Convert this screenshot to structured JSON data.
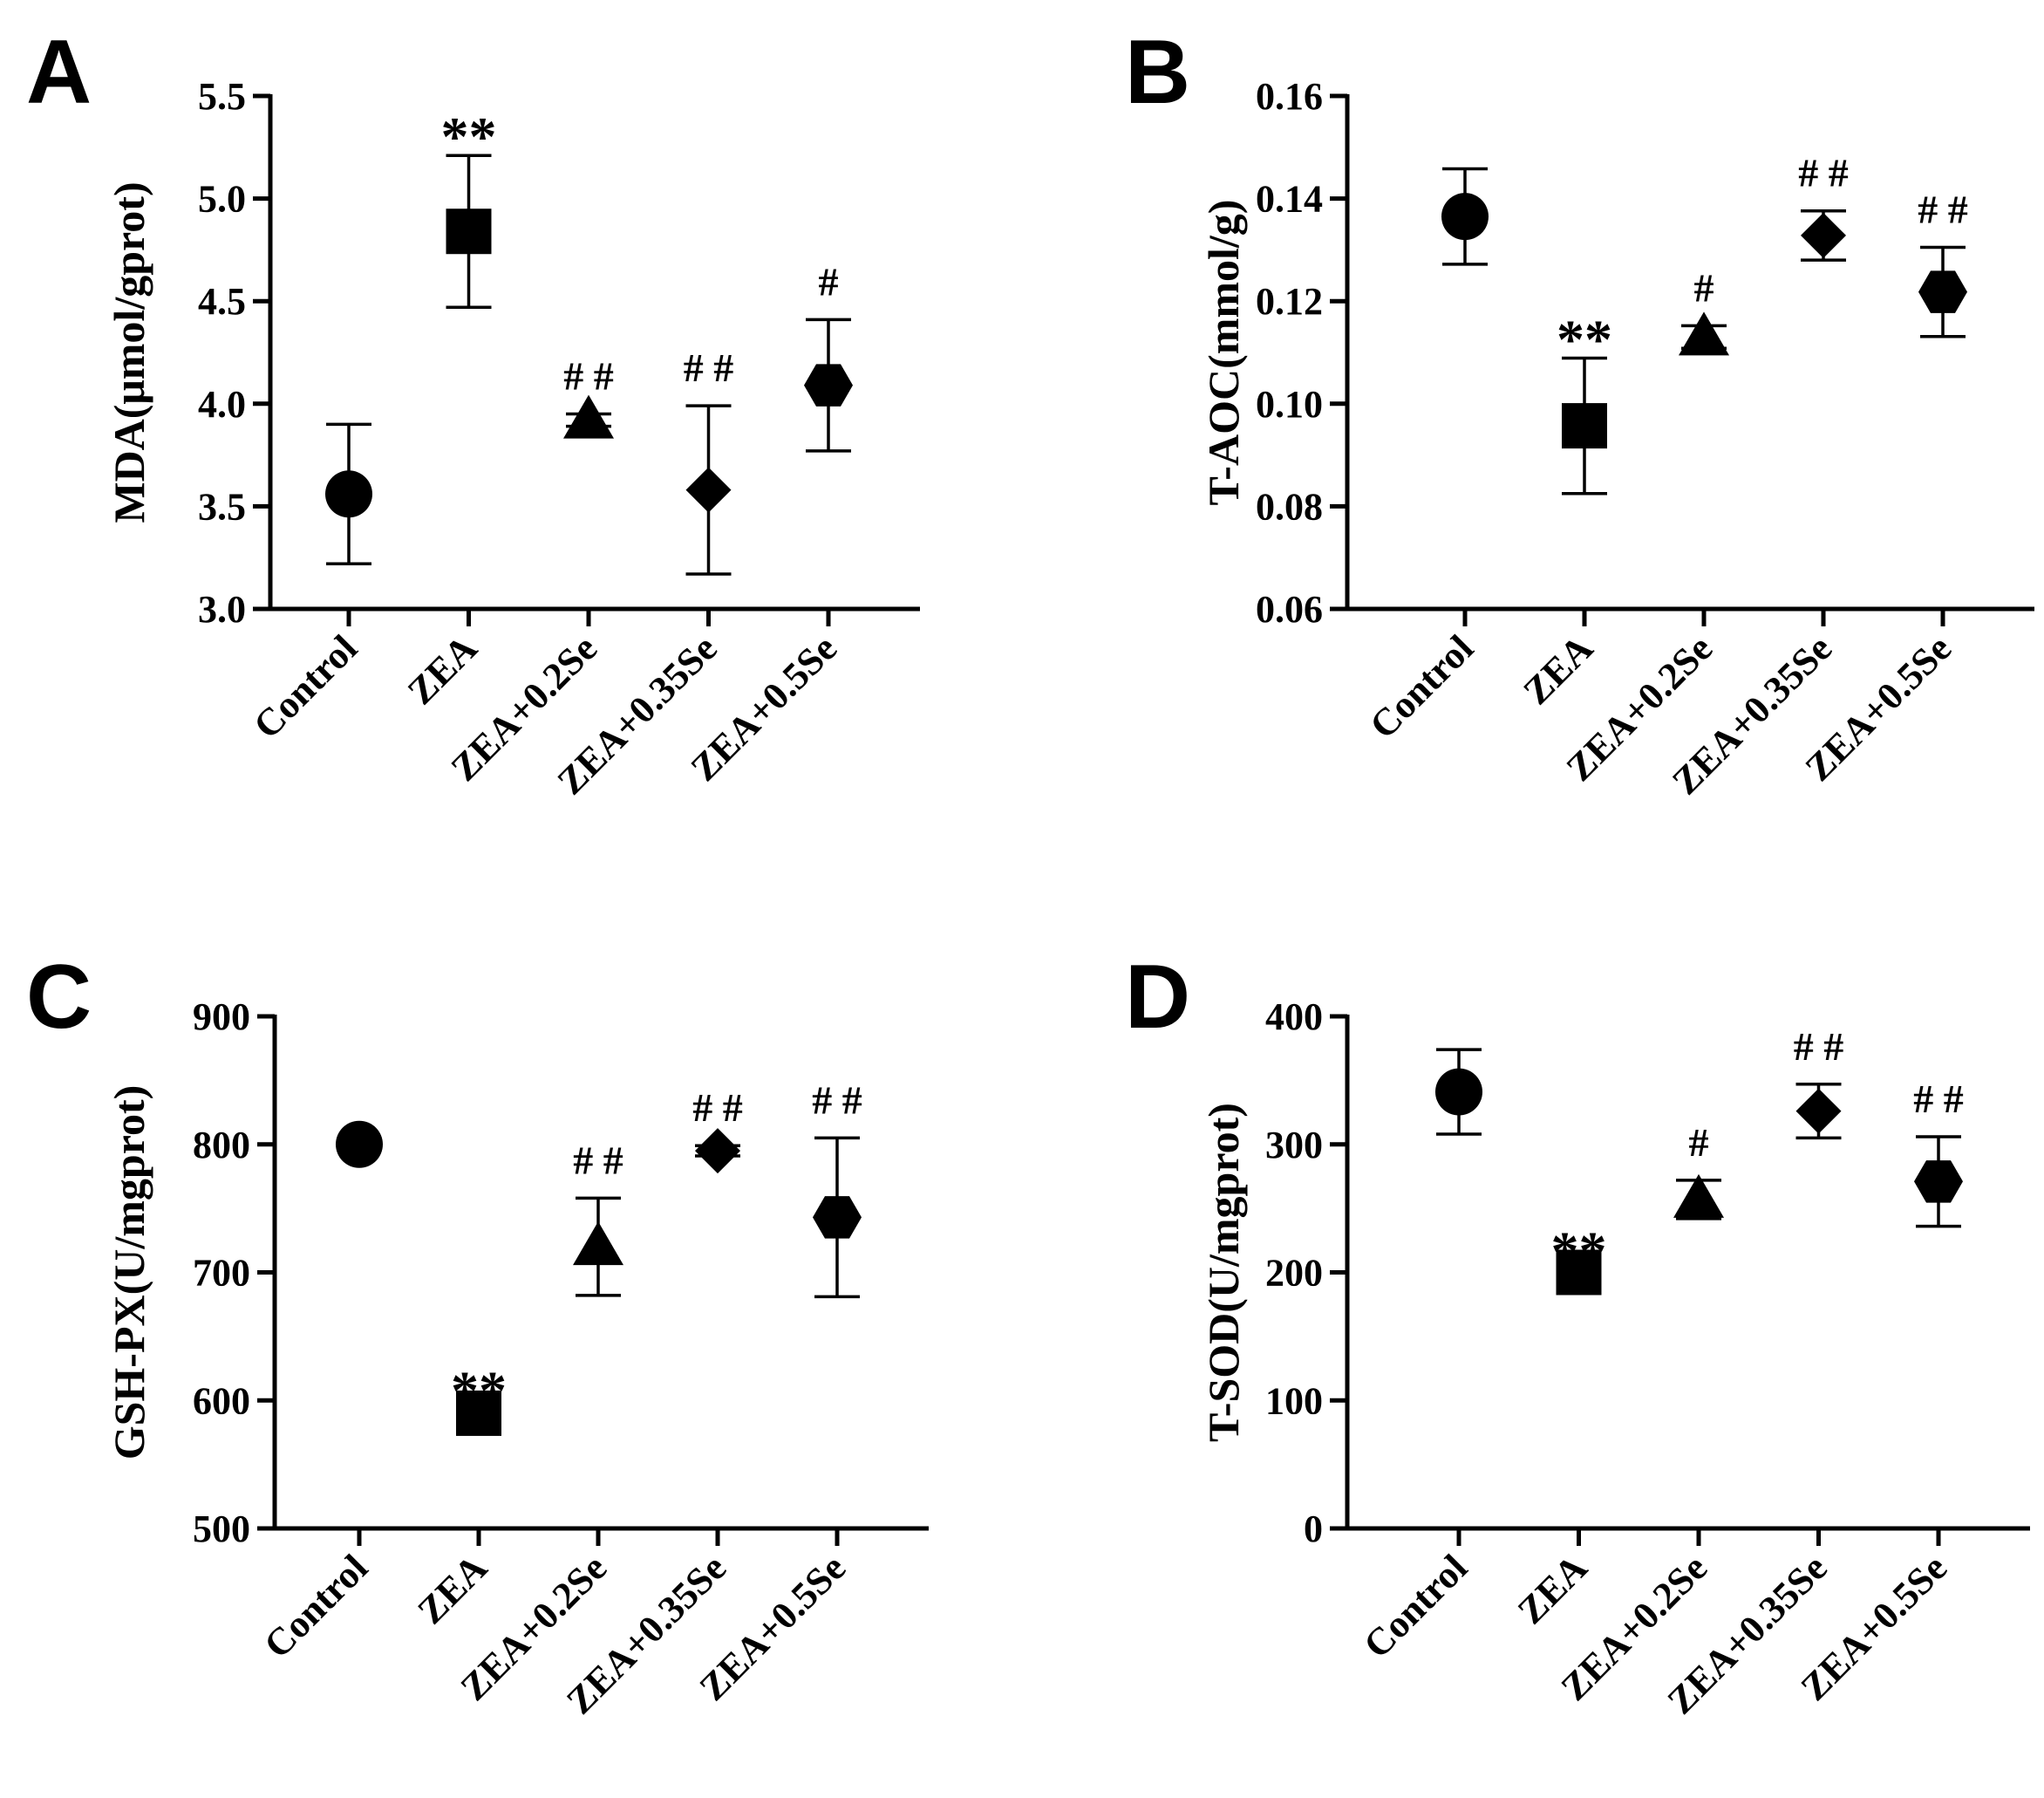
{
  "chart_data": [
    {
      "panel": "A",
      "type": "scatter",
      "ylabel": "MDA(μmol/gprot)",
      "categories": [
        "Control",
        "ZEA",
        "ZEA+0.2Se",
        "ZEA+0.35Se",
        "ZEA+0.5Se"
      ],
      "ylim": [
        3.0,
        5.5
      ],
      "yticks": [
        "3.0",
        "3.5",
        "4.0",
        "4.5",
        "5.0",
        "5.5"
      ],
      "values": [
        3.56,
        4.84,
        3.92,
        3.58,
        4.09
      ],
      "errors": [
        0.34,
        0.37,
        0.03,
        0.41,
        0.32
      ],
      "markers": [
        "circle",
        "square",
        "triangle",
        "diamond",
        "hexagon"
      ],
      "annotations": [
        "",
        "**",
        "# #",
        "# #",
        "#"
      ]
    },
    {
      "panel": "B",
      "type": "scatter",
      "ylabel": "T-AOC(mmol/g)",
      "categories": [
        "Control",
        "ZEA",
        "ZEA+0.2Se",
        "ZEA+0.35Se",
        "ZEA+0.5Se"
      ],
      "ylim": [
        0.06,
        0.16
      ],
      "yticks": [
        "0.06",
        "0.08",
        "0.10",
        "0.12",
        "0.14",
        "0.16"
      ],
      "values": [
        0.1365,
        0.0957,
        0.113,
        0.1328,
        0.1218
      ],
      "errors": [
        0.0093,
        0.0132,
        0.0022,
        0.0048,
        0.0087
      ],
      "markers": [
        "circle",
        "square",
        "triangle",
        "diamond",
        "hexagon"
      ],
      "annotations": [
        "",
        "**",
        "#",
        "# #",
        "# #"
      ]
    },
    {
      "panel": "C",
      "type": "scatter",
      "ylabel": "GSH-PX(U/mgprot)",
      "categories": [
        "Control",
        "ZEA",
        "ZEA+0.2Se",
        "ZEA+0.35Se",
        "ZEA+0.5Se"
      ],
      "ylim": [
        500,
        900
      ],
      "yticks": [
        "500",
        "600",
        "700",
        "800",
        "900"
      ],
      "values": [
        800,
        590,
        720,
        795,
        743
      ],
      "errors": [
        4,
        3,
        38,
        4,
        62
      ],
      "markers": [
        "circle",
        "square",
        "triangle",
        "diamond",
        "hexagon"
      ],
      "annotations": [
        "",
        "**",
        "# #",
        "# #",
        "# #"
      ]
    },
    {
      "panel": "D",
      "type": "scatter",
      "ylabel": "T-SOD(U/mgprot)",
      "categories": [
        "Control",
        "ZEA",
        "ZEA+0.2Se",
        "ZEA+0.35Se",
        "ZEA+0.5Se"
      ],
      "ylim": [
        0,
        400
      ],
      "yticks": [
        "0",
        "100",
        "200",
        "300",
        "400"
      ],
      "values": [
        341,
        200,
        257,
        326,
        271
      ],
      "errors": [
        33,
        2,
        15,
        21,
        35
      ],
      "markers": [
        "circle",
        "square",
        "triangle",
        "diamond",
        "hexagon"
      ],
      "annotations": [
        "",
        "**",
        "#",
        "# #",
        "# #"
      ]
    }
  ],
  "colors": {
    "marker": "#000000",
    "axis": "#000000"
  }
}
